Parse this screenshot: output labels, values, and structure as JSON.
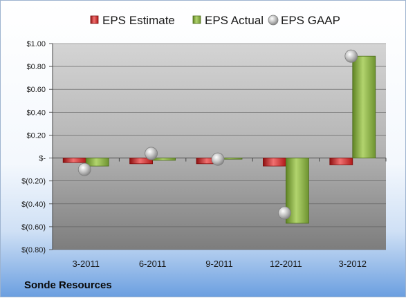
{
  "chart_data": {
    "type": "bar",
    "categories": [
      "3-2011",
      "6-2011",
      "9-2011",
      "12-2011",
      "3-2012"
    ],
    "series": [
      {
        "name": "EPS Estimate",
        "kind": "bar",
        "color": "#d22b2b",
        "values": [
          -0.04,
          -0.05,
          -0.05,
          -0.07,
          -0.06
        ]
      },
      {
        "name": "EPS Actual",
        "kind": "bar",
        "color": "#8bb040",
        "values": [
          -0.07,
          -0.02,
          -0.01,
          -0.57,
          0.89
        ]
      },
      {
        "name": "EPS GAAP",
        "kind": "marker",
        "color": "#b8b8b8",
        "values": [
          -0.1,
          0.04,
          -0.01,
          -0.48,
          0.89
        ]
      }
    ],
    "yticks": [
      "$1.00",
      "$0.80",
      "$0.60",
      "$0.40",
      "$0.20",
      "$-",
      "$(0.20)",
      "$(0.40)",
      "$(0.60)",
      "$(0.80)"
    ],
    "ylim": [
      -0.8,
      1.0
    ],
    "grid": true,
    "legend_position": "top"
  },
  "footer": {
    "company": "Sonde Resources"
  }
}
